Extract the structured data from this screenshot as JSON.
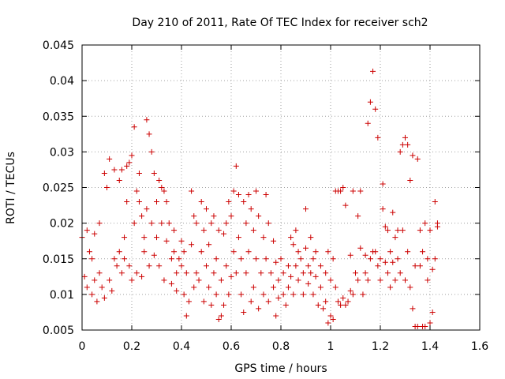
{
  "chart_data": {
    "type": "scatter",
    "title": "Day 210 of 2011, Rate Of TEC Index for receiver sch2",
    "xlabel": "GPS time / hours",
    "ylabel": "ROTI / TECUs",
    "xlim": [
      0,
      1.6
    ],
    "ylim": [
      0.005,
      0.045
    ],
    "x_ticks": [
      "0",
      "0.2",
      "0.4",
      "0.6",
      "0.8",
      "1",
      "1.2",
      "1.4",
      "1.6"
    ],
    "y_ticks": [
      "0.005",
      "0.01",
      "0.015",
      "0.02",
      "0.025",
      "0.03",
      "0.035",
      "0.04",
      "0.045"
    ],
    "grid": true,
    "marker": "plus",
    "marker_color": "#cc0000",
    "series": [
      {
        "name": "ROTI",
        "points": [
          [
            0.0,
            0.018
          ],
          [
            0.01,
            0.0125
          ],
          [
            0.02,
            0.019
          ],
          [
            0.02,
            0.011
          ],
          [
            0.03,
            0.016
          ],
          [
            0.04,
            0.01
          ],
          [
            0.04,
            0.015
          ],
          [
            0.05,
            0.0185
          ],
          [
            0.05,
            0.012
          ],
          [
            0.06,
            0.009
          ],
          [
            0.07,
            0.013
          ],
          [
            0.07,
            0.02
          ],
          [
            0.08,
            0.011
          ],
          [
            0.09,
            0.027
          ],
          [
            0.09,
            0.0095
          ],
          [
            0.1,
            0.025
          ],
          [
            0.11,
            0.012
          ],
          [
            0.11,
            0.029
          ],
          [
            0.12,
            0.0105
          ],
          [
            0.13,
            0.0275
          ],
          [
            0.13,
            0.015
          ],
          [
            0.14,
            0.014
          ],
          [
            0.15,
            0.026
          ],
          [
            0.15,
            0.016
          ],
          [
            0.16,
            0.013
          ],
          [
            0.16,
            0.0275
          ],
          [
            0.17,
            0.018
          ],
          [
            0.17,
            0.015
          ],
          [
            0.18,
            0.023
          ],
          [
            0.18,
            0.028
          ],
          [
            0.19,
            0.0285
          ],
          [
            0.19,
            0.014
          ],
          [
            0.2,
            0.0295
          ],
          [
            0.2,
            0.012
          ],
          [
            0.21,
            0.0335
          ],
          [
            0.21,
            0.02
          ],
          [
            0.22,
            0.0245
          ],
          [
            0.22,
            0.013
          ],
          [
            0.23,
            0.027
          ],
          [
            0.23,
            0.023
          ],
          [
            0.24,
            0.021
          ],
          [
            0.24,
            0.0125
          ],
          [
            0.25,
            0.018
          ],
          [
            0.25,
            0.016
          ],
          [
            0.26,
            0.0345
          ],
          [
            0.26,
            0.022
          ],
          [
            0.27,
            0.0325
          ],
          [
            0.27,
            0.014
          ],
          [
            0.28,
            0.03
          ],
          [
            0.28,
            0.02
          ],
          [
            0.29,
            0.027
          ],
          [
            0.29,
            0.0155
          ],
          [
            0.3,
            0.023
          ],
          [
            0.3,
            0.018
          ],
          [
            0.31,
            0.026
          ],
          [
            0.31,
            0.014
          ],
          [
            0.32,
            0.025
          ],
          [
            0.32,
            0.02
          ],
          [
            0.33,
            0.0245
          ],
          [
            0.33,
            0.012
          ],
          [
            0.34,
            0.023
          ],
          [
            0.34,
            0.0175
          ],
          [
            0.35,
            0.02
          ],
          [
            0.36,
            0.015
          ],
          [
            0.36,
            0.0115
          ],
          [
            0.37,
            0.019
          ],
          [
            0.37,
            0.016
          ],
          [
            0.38,
            0.013
          ],
          [
            0.38,
            0.0105
          ],
          [
            0.39,
            0.015
          ],
          [
            0.4,
            0.014
          ],
          [
            0.4,
            0.0175
          ],
          [
            0.41,
            0.01
          ],
          [
            0.41,
            0.016
          ],
          [
            0.42,
            0.007
          ],
          [
            0.42,
            0.013
          ],
          [
            0.43,
            0.009
          ],
          [
            0.44,
            0.0245
          ],
          [
            0.44,
            0.017
          ],
          [
            0.45,
            0.011
          ],
          [
            0.45,
            0.021
          ],
          [
            0.46,
            0.02
          ],
          [
            0.46,
            0.013
          ],
          [
            0.47,
            0.012
          ],
          [
            0.48,
            0.016
          ],
          [
            0.48,
            0.023
          ],
          [
            0.49,
            0.009
          ],
          [
            0.49,
            0.019
          ],
          [
            0.5,
            0.022
          ],
          [
            0.5,
            0.014
          ],
          [
            0.51,
            0.011
          ],
          [
            0.51,
            0.017
          ],
          [
            0.52,
            0.02
          ],
          [
            0.52,
            0.0085
          ],
          [
            0.53,
            0.021
          ],
          [
            0.53,
            0.013
          ],
          [
            0.54,
            0.015
          ],
          [
            0.54,
            0.01
          ],
          [
            0.55,
            0.019
          ],
          [
            0.55,
            0.0065
          ],
          [
            0.56,
            0.007
          ],
          [
            0.56,
            0.012
          ],
          [
            0.57,
            0.0185
          ],
          [
            0.57,
            0.0085
          ],
          [
            0.58,
            0.02
          ],
          [
            0.58,
            0.014
          ],
          [
            0.59,
            0.023
          ],
          [
            0.59,
            0.01
          ],
          [
            0.6,
            0.021
          ],
          [
            0.6,
            0.0125
          ],
          [
            0.61,
            0.0245
          ],
          [
            0.61,
            0.016
          ],
          [
            0.62,
            0.028
          ],
          [
            0.62,
            0.013
          ],
          [
            0.63,
            0.024
          ],
          [
            0.63,
            0.018
          ],
          [
            0.64,
            0.015
          ],
          [
            0.64,
            0.01
          ],
          [
            0.65,
            0.023
          ],
          [
            0.65,
            0.0075
          ],
          [
            0.66,
            0.02
          ],
          [
            0.66,
            0.013
          ],
          [
            0.67,
            0.024
          ],
          [
            0.67,
            0.016
          ],
          [
            0.68,
            0.022
          ],
          [
            0.68,
            0.009
          ],
          [
            0.69,
            0.019
          ],
          [
            0.69,
            0.011
          ],
          [
            0.7,
            0.0245
          ],
          [
            0.7,
            0.015
          ],
          [
            0.71,
            0.021
          ],
          [
            0.71,
            0.008
          ],
          [
            0.72,
            0.013
          ],
          [
            0.73,
            0.018
          ],
          [
            0.73,
            0.01
          ],
          [
            0.74,
            0.024
          ],
          [
            0.74,
            0.015
          ],
          [
            0.75,
            0.02
          ],
          [
            0.75,
            0.009
          ],
          [
            0.76,
            0.013
          ],
          [
            0.77,
            0.0175
          ],
          [
            0.77,
            0.011
          ],
          [
            0.78,
            0.0145
          ],
          [
            0.78,
            0.007
          ],
          [
            0.79,
            0.012
          ],
          [
            0.79,
            0.0095
          ],
          [
            0.8,
            0.015
          ],
          [
            0.81,
            0.01
          ],
          [
            0.81,
            0.013
          ],
          [
            0.82,
            0.0085
          ],
          [
            0.83,
            0.014
          ],
          [
            0.83,
            0.011
          ],
          [
            0.84,
            0.018
          ],
          [
            0.84,
            0.0125
          ],
          [
            0.85,
            0.017
          ],
          [
            0.85,
            0.01
          ],
          [
            0.86,
            0.019
          ],
          [
            0.86,
            0.014
          ],
          [
            0.87,
            0.016
          ],
          [
            0.87,
            0.012
          ],
          [
            0.88,
            0.015
          ],
          [
            0.89,
            0.013
          ],
          [
            0.89,
            0.01
          ],
          [
            0.9,
            0.022
          ],
          [
            0.9,
            0.0165
          ],
          [
            0.91,
            0.014
          ],
          [
            0.91,
            0.0115
          ],
          [
            0.92,
            0.018
          ],
          [
            0.92,
            0.013
          ],
          [
            0.93,
            0.015
          ],
          [
            0.93,
            0.01
          ],
          [
            0.94,
            0.016
          ],
          [
            0.94,
            0.0125
          ],
          [
            0.95,
            0.0085
          ],
          [
            0.96,
            0.014
          ],
          [
            0.96,
            0.011
          ],
          [
            0.97,
            0.008
          ],
          [
            0.98,
            0.013
          ],
          [
            0.98,
            0.009
          ],
          [
            0.99,
            0.006
          ],
          [
            0.99,
            0.016
          ],
          [
            1.0,
            0.007
          ],
          [
            1.0,
            0.012
          ],
          [
            1.01,
            0.015
          ],
          [
            1.01,
            0.0065
          ],
          [
            1.02,
            0.0245
          ],
          [
            1.02,
            0.011
          ],
          [
            1.03,
            0.009
          ],
          [
            1.03,
            0.0245
          ],
          [
            1.04,
            0.0085
          ],
          [
            1.04,
            0.0245
          ],
          [
            1.05,
            0.025
          ],
          [
            1.05,
            0.0095
          ],
          [
            1.06,
            0.0225
          ],
          [
            1.06,
            0.0085
          ],
          [
            1.07,
            0.009
          ],
          [
            1.08,
            0.0105
          ],
          [
            1.08,
            0.0155
          ],
          [
            1.09,
            0.0245
          ],
          [
            1.09,
            0.01
          ],
          [
            1.1,
            0.013
          ],
          [
            1.11,
            0.021
          ],
          [
            1.11,
            0.012
          ],
          [
            1.12,
            0.0165
          ],
          [
            1.12,
            0.0245
          ],
          [
            1.13,
            0.01
          ],
          [
            1.14,
            0.0155
          ],
          [
            1.14,
            0.013
          ],
          [
            1.15,
            0.034
          ],
          [
            1.15,
            0.012
          ],
          [
            1.16,
            0.037
          ],
          [
            1.16,
            0.015
          ],
          [
            1.17,
            0.0413
          ],
          [
            1.17,
            0.016
          ],
          [
            1.18,
            0.036
          ],
          [
            1.18,
            0.016
          ],
          [
            1.19,
            0.032
          ],
          [
            1.19,
            0.014
          ],
          [
            1.2,
            0.015
          ],
          [
            1.2,
            0.012
          ],
          [
            1.21,
            0.022
          ],
          [
            1.21,
            0.0255
          ],
          [
            1.22,
            0.0145
          ],
          [
            1.22,
            0.0195
          ],
          [
            1.23,
            0.013
          ],
          [
            1.23,
            0.019
          ],
          [
            1.24,
            0.016
          ],
          [
            1.24,
            0.011
          ],
          [
            1.25,
            0.0215
          ],
          [
            1.25,
            0.0145
          ],
          [
            1.26,
            0.018
          ],
          [
            1.26,
            0.012
          ],
          [
            1.27,
            0.015
          ],
          [
            1.27,
            0.019
          ],
          [
            1.28,
            0.03
          ],
          [
            1.28,
            0.013
          ],
          [
            1.29,
            0.031
          ],
          [
            1.29,
            0.019
          ],
          [
            1.3,
            0.032
          ],
          [
            1.3,
            0.012
          ],
          [
            1.31,
            0.031
          ],
          [
            1.31,
            0.016
          ],
          [
            1.32,
            0.026
          ],
          [
            1.32,
            0.011
          ],
          [
            1.33,
            0.0295
          ],
          [
            1.33,
            0.008
          ],
          [
            1.34,
            0.0055
          ],
          [
            1.34,
            0.014
          ],
          [
            1.35,
            0.029
          ],
          [
            1.35,
            0.0055
          ],
          [
            1.36,
            0.019
          ],
          [
            1.36,
            0.014
          ],
          [
            1.37,
            0.0055
          ],
          [
            1.37,
            0.016
          ],
          [
            1.38,
            0.02
          ],
          [
            1.38,
            0.0055
          ],
          [
            1.39,
            0.012
          ],
          [
            1.39,
            0.015
          ],
          [
            1.4,
            0.006
          ],
          [
            1.4,
            0.019
          ],
          [
            1.41,
            0.0135
          ],
          [
            1.41,
            0.0075
          ],
          [
            1.42,
            0.023
          ],
          [
            1.42,
            0.015
          ],
          [
            1.43,
            0.02
          ],
          [
            1.43,
            0.0195
          ]
        ]
      }
    ]
  }
}
